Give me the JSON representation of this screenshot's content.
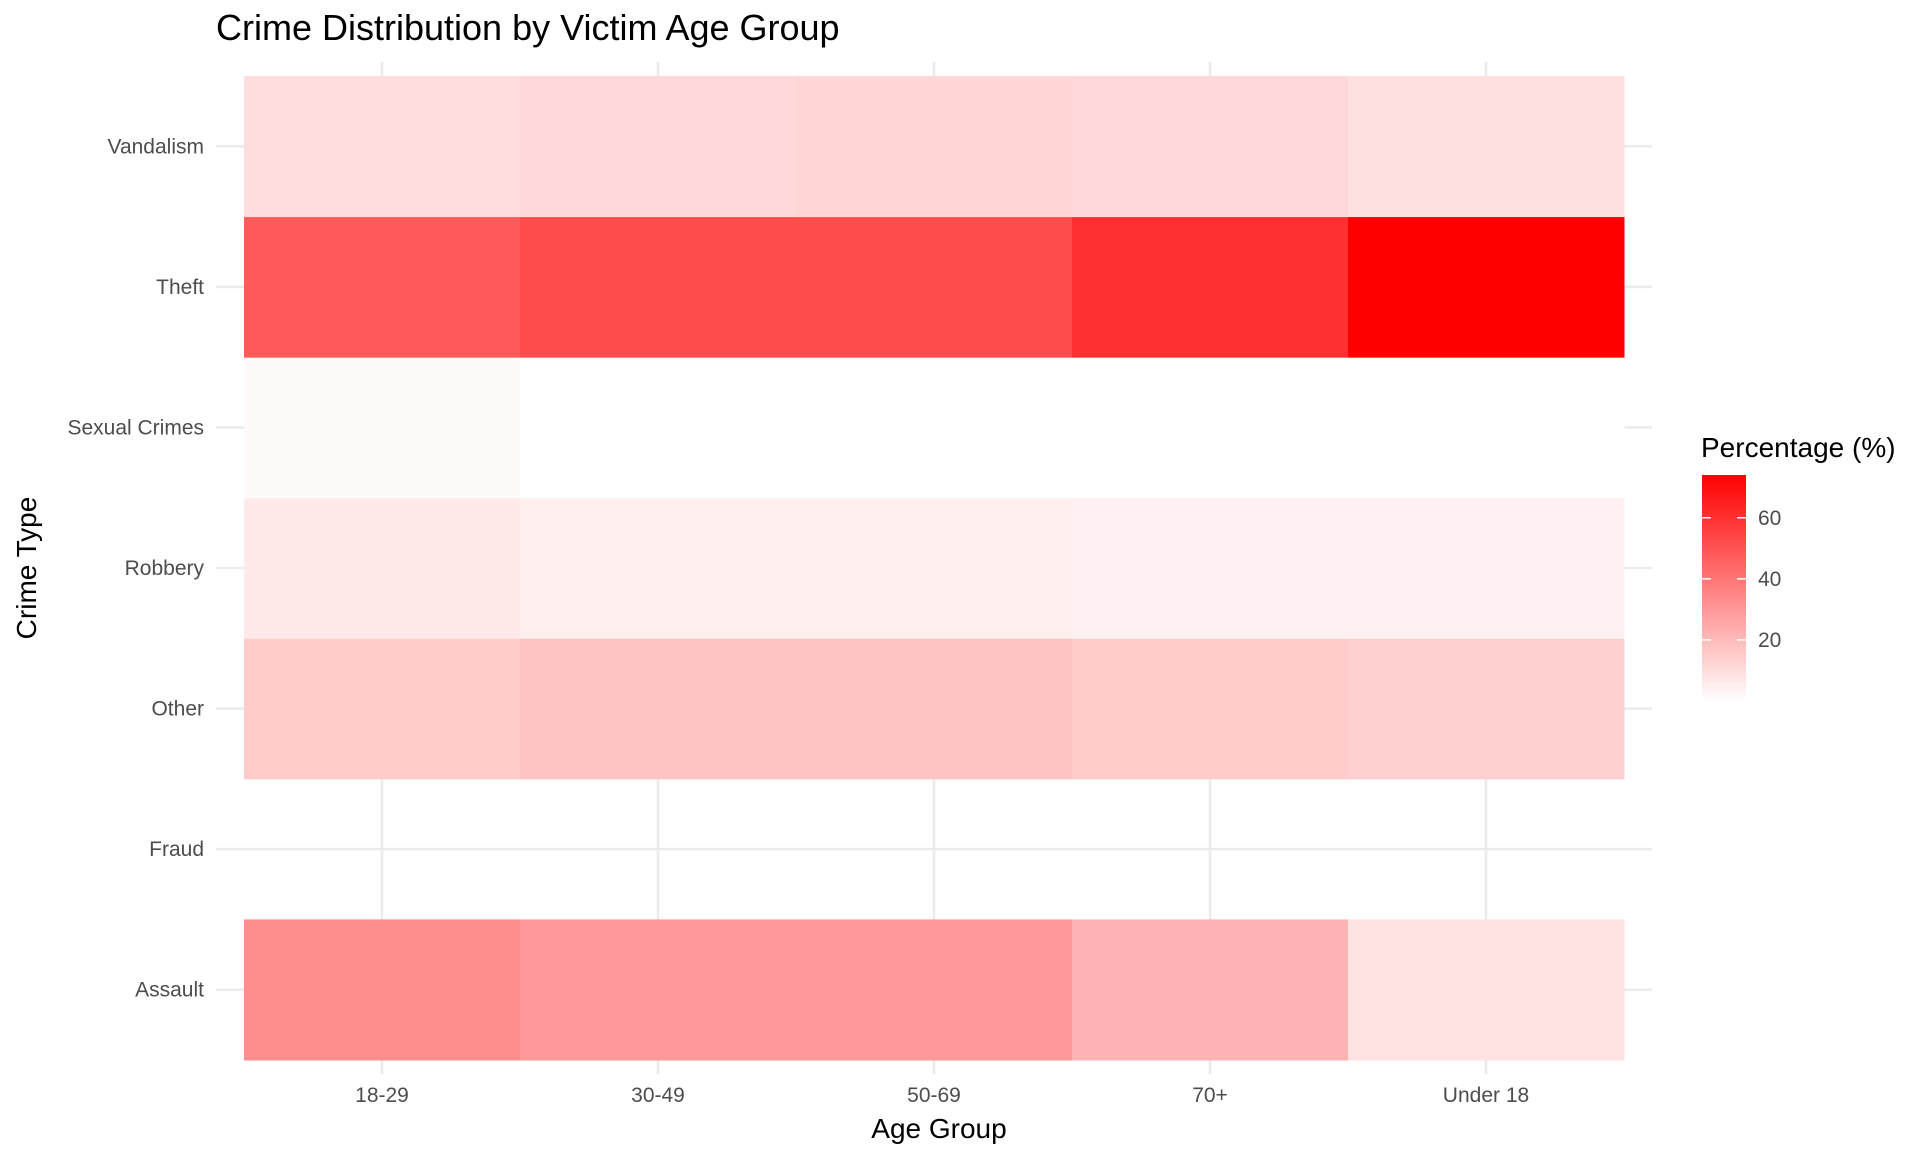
{
  "chart_data": {
    "type": "heatmap",
    "title": "Crime Distribution by Victim Age Group",
    "xlabel": "Age Group",
    "ylabel": "Crime Type",
    "x_categories": [
      "18-29",
      "30-49",
      "50-69",
      "70+",
      "Under 18"
    ],
    "y_categories": [
      "Assault",
      "Fraud",
      "Other",
      "Robbery",
      "Sexual Crimes",
      "Theft",
      "Vandalism"
    ],
    "values": {
      "Vandalism": [
        10,
        11,
        12,
        11,
        9
      ],
      "Theft": [
        48,
        52,
        52,
        60,
        74
      ],
      "Sexual Crimes": [
        1.5,
        0,
        0,
        0,
        0
      ],
      "Robbery": [
        6.5,
        5,
        5,
        4,
        4
      ],
      "Other": [
        15,
        17,
        17,
        15,
        14
      ],
      "Fraud": [
        null,
        null,
        null,
        null,
        null
      ],
      "Assault": [
        33,
        30,
        30,
        22,
        8
      ]
    },
    "legend": {
      "title": "Percentage (%)",
      "ticks": [
        20,
        40,
        60
      ],
      "range": [
        0,
        74
      ],
      "low_color": "#ffffff",
      "high_color": "#ff0000",
      "placement": "right"
    },
    "grid": true
  }
}
